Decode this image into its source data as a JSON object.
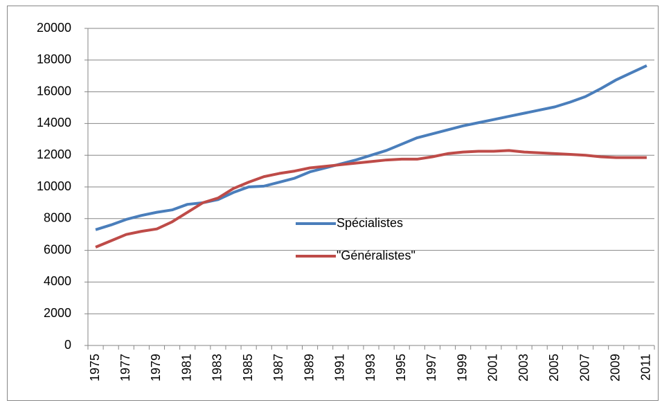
{
  "chart_data": {
    "type": "line",
    "categories": [
      "1975",
      null,
      "1977",
      null,
      "1979",
      null,
      "1981",
      null,
      "1983",
      null,
      "1985",
      null,
      "1987",
      null,
      "1989",
      null,
      "1991",
      null,
      "1993",
      null,
      "1995",
      null,
      "1997",
      null,
      "1999",
      null,
      "2001",
      null,
      "2003",
      null,
      "2005",
      null,
      "2007",
      null,
      "2009",
      null,
      "2011"
    ],
    "series": [
      {
        "name": "Spécialistes",
        "color": "#4a7ebb",
        "values": [
          7300,
          7600,
          7950,
          8200,
          8400,
          8550,
          8900,
          9000,
          9200,
          9650,
          10000,
          10050,
          10300,
          10550,
          10950,
          11200,
          11450,
          11700,
          12000,
          12300,
          12700,
          13100,
          13350,
          13600,
          13850,
          14050,
          14250,
          14450,
          14650,
          14850,
          15050,
          15350,
          15700,
          16200,
          16750,
          17200,
          17650
        ]
      },
      {
        "name": "\"Généralistes\"",
        "color": "#be4b48",
        "values": [
          6200,
          6600,
          7000,
          7200,
          7350,
          7800,
          8400,
          9000,
          9300,
          9900,
          10300,
          10650,
          10850,
          11000,
          11200,
          11300,
          11400,
          11500,
          11600,
          11700,
          11750,
          11750,
          11900,
          12100,
          12200,
          12250,
          12250,
          12300,
          12200,
          12150,
          12100,
          12050,
          12000,
          11900,
          11850,
          11850,
          11850
        ]
      }
    ],
    "ylim": [
      0,
      20000
    ],
    "yticks": [
      0,
      2000,
      4000,
      6000,
      8000,
      10000,
      12000,
      14000,
      16000,
      18000,
      20000
    ],
    "grid": true,
    "legend": "center"
  }
}
